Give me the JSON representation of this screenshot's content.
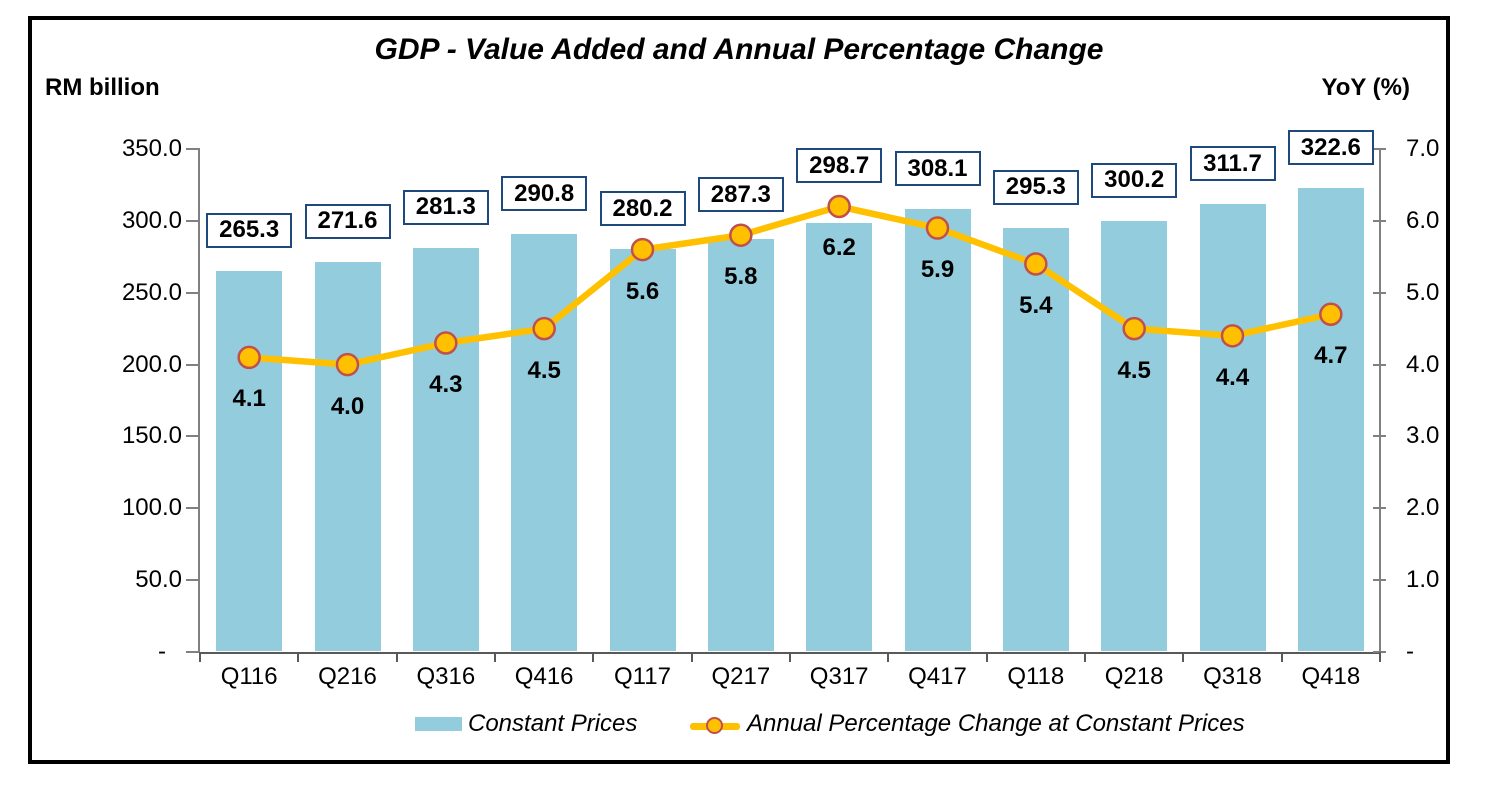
{
  "chart": {
    "title": "GDP - Value Added and Annual Percentage Change",
    "left_axis_title": "RM billion",
    "right_axis_title": "YoY (%)"
  },
  "chart_data": {
    "type": "combo_bar_line",
    "title": "GDP - Value Added and Annual Percentage Change",
    "categories": [
      "Q116",
      "Q216",
      "Q316",
      "Q416",
      "Q117",
      "Q217",
      "Q317",
      "Q417",
      "Q118",
      "Q218",
      "Q318",
      "Q418"
    ],
    "series": [
      {
        "name": "Constant Prices",
        "type": "bar",
        "axis": "left",
        "values": [
          265.3,
          271.6,
          281.3,
          290.8,
          280.2,
          287.3,
          298.7,
          308.1,
          295.3,
          300.2,
          311.7,
          322.6
        ],
        "labels": [
          "265.3",
          "271.6",
          "281.3",
          "290.8",
          "280.2",
          "287.3",
          "298.7",
          "308.1",
          "295.3",
          "300.2",
          "311.7",
          "322.6"
        ]
      },
      {
        "name": "Annual Percentage Change at Constant Prices",
        "type": "line",
        "axis": "right",
        "values": [
          4.1,
          4.0,
          4.3,
          4.5,
          5.6,
          5.8,
          6.2,
          5.9,
          5.4,
          4.5,
          4.4,
          4.7
        ],
        "labels": [
          "4.1",
          "4.0",
          "4.3",
          "4.5",
          "5.6",
          "5.8",
          "6.2",
          "5.9",
          "5.4",
          "4.5",
          "4.4",
          "4.7"
        ]
      }
    ],
    "left_axis": {
      "title": "RM billion",
      "min": 0,
      "max": 350,
      "ticks": [
        "350.0",
        "300.0",
        "250.0",
        "200.0",
        "150.0",
        "100.0",
        "50.0",
        "-"
      ]
    },
    "right_axis": {
      "title": "YoY (%)",
      "min": 0,
      "max": 7,
      "ticks": [
        "7.0",
        "6.0",
        "5.0",
        "4.0",
        "3.0",
        "2.0",
        "1.0",
        "-"
      ]
    },
    "legend": [
      "Constant Prices",
      "Annual Percentage Change at Constant Prices"
    ],
    "legend_position": "bottom",
    "grid": false
  },
  "colors": {
    "bar_fill": "#93CDDD",
    "line": "#FFC000",
    "marker_fill": "#FFC000",
    "marker_border": "#C0504D",
    "label_box_border": "#1F497D",
    "axis_line": "#808080",
    "x_axis_line": "#595959",
    "frame_border": "#000000",
    "text": "#000000",
    "background": "#FFFFFF"
  }
}
